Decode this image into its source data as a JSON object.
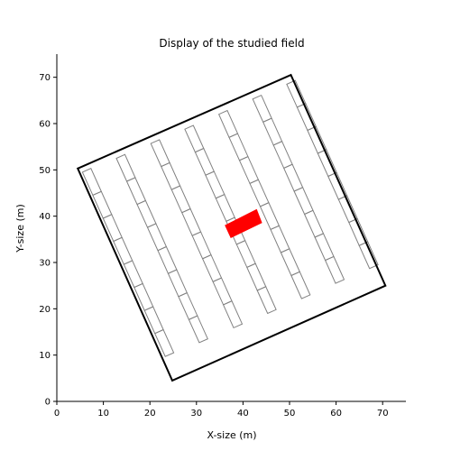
{
  "chart_data": {
    "type": "scatter",
    "title": "Display of the studied field",
    "xlabel": "X-size (m)",
    "ylabel": "Y-size (m)",
    "xlim": [
      0,
      75
    ],
    "ylim": [
      0,
      75
    ],
    "xticks": [
      0,
      10,
      20,
      30,
      40,
      50,
      60,
      70
    ],
    "yticks": [
      0,
      10,
      20,
      30,
      40,
      50,
      60,
      70
    ],
    "grid": false,
    "field_boundary": [
      [
        4.5,
        50.3
      ],
      [
        50.3,
        70.5
      ],
      [
        70.6,
        25
      ],
      [
        24.8,
        4.5
      ]
    ],
    "plot_rows": {
      "count": 7,
      "plots_per_row": 8,
      "row_starts": [
        [
          5.5,
          49.5
        ],
        [
          12.8,
          52.5
        ],
        [
          20.2,
          55.7
        ],
        [
          27.5,
          58.8
        ],
        [
          34.8,
          62.0
        ],
        [
          42.1,
          65.3
        ],
        [
          49.4,
          68.5
        ]
      ],
      "row_direction": [
        0.4081,
        -0.913
      ],
      "plot_length": 5.45,
      "plot_width": 2.0,
      "plot_color": "#808080"
    },
    "highlighted_plot": {
      "color": "#ff0000",
      "corners": [
        [
          36.2,
          38.0
        ],
        [
          42.9,
          41.4
        ],
        [
          44.0,
          38.6
        ],
        [
          37.4,
          35.4
        ]
      ]
    },
    "colors": {
      "axes": "#000000",
      "boundary": "#000000",
      "background": "#ffffff"
    }
  }
}
